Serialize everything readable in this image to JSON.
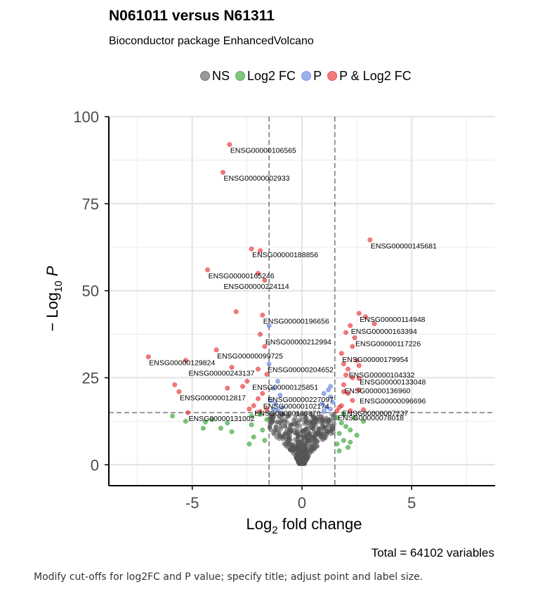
{
  "caption": "Modify cut-offs for log2FC and P value; specify title; adjust point and label size.",
  "chart_data": {
    "type": "scatter",
    "title": "N061011 versus N61311",
    "subtitle": "Bioconductor package EnhancedVolcano",
    "caption_total": "Total = 64102 variables",
    "xlabel": {
      "main": "Log",
      "sub": "2",
      "rest": " fold change"
    },
    "ylabel": {
      "prefix": "− Log",
      "sub": "10",
      "italic": " P"
    },
    "xlim": [
      -8.8,
      8.8
    ],
    "ylim": [
      -6,
      100
    ],
    "x_ticks": [
      -5,
      0,
      5
    ],
    "x_tick_labels": [
      "-5",
      "0",
      "5"
    ],
    "y_ticks": [
      0,
      25,
      50,
      75,
      100
    ],
    "y_tick_labels": [
      "0",
      "25",
      "50",
      "75",
      "100"
    ],
    "grid": true,
    "legend_position": "top",
    "cutoffs": {
      "log2fc": 1.5,
      "neg_log10_p": 15
    },
    "colors": {
      "NS": "#555555",
      "Log2 FC": "#2ca02c",
      "P": "#5b7fe0",
      "P & Log2 FC": "#e8262b"
    },
    "legend": [
      {
        "key": "NS",
        "label": "NS"
      },
      {
        "key": "Log2 FC",
        "label": "Log2 FC"
      },
      {
        "key": "P",
        "label": "P"
      },
      {
        "key": "P & Log2 FC",
        "label": "P & Log2 FC"
      }
    ],
    "series": [
      {
        "key": "P & Log2 FC",
        "points": [
          [
            -3.3,
            92.0
          ],
          [
            -3.6,
            84.0
          ],
          [
            3.1,
            64.6
          ],
          [
            -2.3,
            62.0
          ],
          [
            -1.9,
            61.5
          ],
          [
            -4.3,
            56.0
          ],
          [
            -2.0,
            55.0
          ],
          [
            -1.7,
            53.0
          ],
          [
            -3.0,
            44.0
          ],
          [
            -1.8,
            43.0
          ],
          [
            2.6,
            43.5
          ],
          [
            2.9,
            42.5
          ],
          [
            3.3,
            40.5
          ],
          [
            2.2,
            40.0
          ],
          [
            2.0,
            38.0
          ],
          [
            -1.9,
            37.5
          ],
          [
            2.4,
            36.5
          ],
          [
            -1.7,
            34.0
          ],
          [
            2.3,
            34.0
          ],
          [
            -3.9,
            33.0
          ],
          [
            1.8,
            32.0
          ],
          [
            -7.0,
            31.0
          ],
          [
            -5.3,
            30.0
          ],
          [
            -3.2,
            28.0
          ],
          [
            1.9,
            29.0
          ],
          [
            2.5,
            30.0
          ],
          [
            2.1,
            27.5
          ],
          [
            -2.0,
            27.5
          ],
          [
            2.6,
            28.5
          ],
          [
            -1.6,
            26.0
          ],
          [
            2.0,
            25.8
          ],
          [
            2.3,
            25.0
          ],
          [
            2.6,
            24.8
          ],
          [
            -2.5,
            24.0
          ],
          [
            -2.7,
            22.5
          ],
          [
            1.9,
            23.0
          ],
          [
            -3.4,
            22.0
          ],
          [
            -5.8,
            23.0
          ],
          [
            -5.6,
            21.0
          ],
          [
            1.9,
            21.0
          ],
          [
            2.1,
            20.5
          ],
          [
            -1.8,
            20.5
          ],
          [
            2.6,
            21.5
          ],
          [
            -2.0,
            19.0
          ],
          [
            2.3,
            18.5
          ],
          [
            -2.2,
            17.0
          ],
          [
            1.8,
            17.0
          ],
          [
            -1.6,
            16.0
          ],
          [
            2.8,
            15.8
          ],
          [
            -5.2,
            15.0
          ],
          [
            1.6,
            15.5
          ],
          [
            -2.4,
            16.0
          ],
          [
            -1.9,
            15.3
          ],
          [
            2.2,
            15.5
          ],
          [
            1.7,
            16.5
          ]
        ]
      },
      {
        "key": "P",
        "points": [
          [
            -1.5,
            40.0
          ],
          [
            -1.5,
            29.0
          ],
          [
            -1.3,
            22.0
          ],
          [
            -1.1,
            24.0
          ],
          [
            1.3,
            22.5
          ],
          [
            1.2,
            21.5
          ],
          [
            -1.0,
            20.0
          ],
          [
            1.0,
            20.5
          ],
          [
            1.3,
            19.5
          ],
          [
            -1.4,
            18.5
          ],
          [
            1.4,
            18.0
          ],
          [
            -1.2,
            17.5
          ],
          [
            0.9,
            17.5
          ],
          [
            -0.9,
            16.5
          ],
          [
            1.1,
            16.5
          ],
          [
            -1.3,
            16.0
          ],
          [
            1.3,
            16.0
          ],
          [
            -1.1,
            15.5
          ],
          [
            1.0,
            15.3
          ]
        ]
      },
      {
        "key": "Log2 FC",
        "points": [
          [
            -5.9,
            14.0
          ],
          [
            -4.1,
            13.0
          ],
          [
            -4.4,
            12.3
          ],
          [
            -3.4,
            12.0
          ],
          [
            -4.5,
            10.5
          ],
          [
            -3.7,
            10.5
          ],
          [
            -3.2,
            9.5
          ],
          [
            -2.3,
            11.5
          ],
          [
            -1.8,
            10.0
          ],
          [
            -2.2,
            8.0
          ],
          [
            -1.7,
            7.0
          ],
          [
            -2.4,
            6.0
          ],
          [
            -1.6,
            13.0
          ],
          [
            -1.9,
            14.5
          ],
          [
            -2.3,
            14.0
          ],
          [
            -5.3,
            12.5
          ],
          [
            1.6,
            13.5
          ],
          [
            1.8,
            12.0
          ],
          [
            2.0,
            11.0
          ],
          [
            1.7,
            9.0
          ],
          [
            2.2,
            10.0
          ],
          [
            2.5,
            8.5
          ],
          [
            1.9,
            7.0
          ],
          [
            1.6,
            6.0
          ],
          [
            2.1,
            5.0
          ],
          [
            1.7,
            4.0
          ],
          [
            2.4,
            13.5
          ],
          [
            2.8,
            12.5
          ],
          [
            1.9,
            14.5
          ],
          [
            2.2,
            6.5
          ]
        ]
      }
    ],
    "labels": [
      {
        "text": "ENSG00000106565",
        "x": -3.3,
        "y": 92.0
      },
      {
        "text": "ENSG00000002933",
        "x": -3.6,
        "y": 84.0
      },
      {
        "text": "ENSG00000145681",
        "x": 3.1,
        "y": 64.6
      },
      {
        "text": "ENSG00000188856",
        "x": -2.3,
        "y": 62.0
      },
      {
        "text": "ENSG00000165246",
        "x": -4.3,
        "y": 56.0
      },
      {
        "text": "ENSG00000224114",
        "x": -3.6,
        "y": 53.0
      },
      {
        "text": "ENSG00000196656",
        "x": -1.8,
        "y": 43.0
      },
      {
        "text": "ENSG00000114948",
        "x": 2.6,
        "y": 43.5
      },
      {
        "text": "ENSG00000163394",
        "x": 2.2,
        "y": 40.0
      },
      {
        "text": "ENSG00000212994",
        "x": -1.7,
        "y": 37.0
      },
      {
        "text": "ENSG00000117226",
        "x": 2.4,
        "y": 36.5
      },
      {
        "text": "ENSG00000099725",
        "x": -3.9,
        "y": 33.0
      },
      {
        "text": "ENSG00000179954",
        "x": 1.8,
        "y": 32.0
      },
      {
        "text": "ENSG00000129824",
        "x": -7.0,
        "y": 31.0
      },
      {
        "text": "ENSG00000204652",
        "x": -1.6,
        "y": 29.0
      },
      {
        "text": "ENSG00000243137",
        "x": -5.2,
        "y": 28.0
      },
      {
        "text": "ENSG00000104332",
        "x": 2.1,
        "y": 27.5
      },
      {
        "text": "ENSG00000133048",
        "x": 2.6,
        "y": 25.5
      },
      {
        "text": "ENSG00000125851",
        "x": -2.3,
        "y": 24.0
      },
      {
        "text": "ENSG00000136960",
        "x": 1.9,
        "y": 23.0
      },
      {
        "text": "ENSG00000012817",
        "x": -5.6,
        "y": 21.0
      },
      {
        "text": "ENSG00000227097",
        "x": -1.6,
        "y": 20.5
      },
      {
        "text": "ENSG00000096696",
        "x": 2.6,
        "y": 20.0
      },
      {
        "text": "ENSG00000102174",
        "x": -1.8,
        "y": 18.5
      },
      {
        "text": "ENSG00000160870",
        "x": -2.2,
        "y": 16.5
      },
      {
        "text": "ENSG00000007237",
        "x": 1.8,
        "y": 16.5
      },
      {
        "text": "ENSG00000131002",
        "x": -5.2,
        "y": 15.0
      },
      {
        "text": "ENSG00000078018",
        "x": 1.6,
        "y": 15.2
      }
    ]
  }
}
